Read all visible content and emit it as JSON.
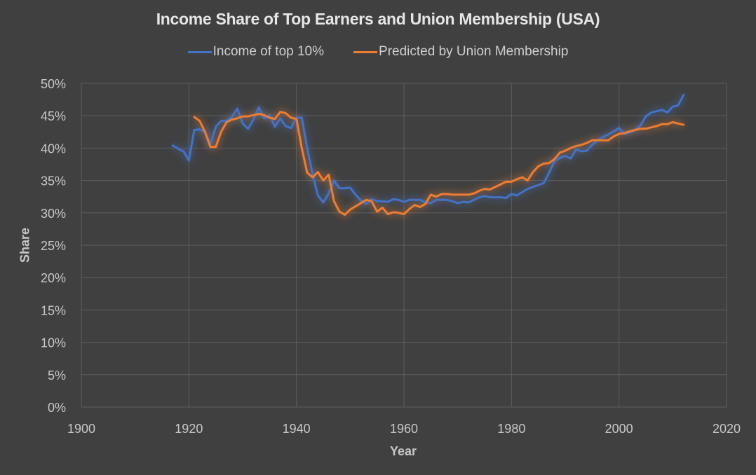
{
  "chart_data": {
    "type": "line",
    "title": "Income Share of Top Earners and Union Membership (USA)",
    "xlabel": "Year",
    "ylabel": "Share",
    "xlim": [
      1900,
      2020
    ],
    "ylim": [
      0,
      50
    ],
    "x_ticks": [
      "1900",
      "1920",
      "1940",
      "1960",
      "1980",
      "2000",
      "2020"
    ],
    "y_ticks": [
      "0%",
      "5%",
      "10%",
      "15%",
      "20%",
      "25%",
      "30%",
      "35%",
      "40%",
      "45%",
      "50%"
    ],
    "grid": true,
    "legend_position": "top",
    "series": [
      {
        "name": "Income of top 10%",
        "color": "#4472c4",
        "x": [
          1917,
          1918,
          1919,
          1920,
          1921,
          1922,
          1923,
          1924,
          1925,
          1926,
          1927,
          1928,
          1929,
          1930,
          1931,
          1932,
          1933,
          1934,
          1935,
          1936,
          1937,
          1938,
          1939,
          1940,
          1941,
          1942,
          1943,
          1944,
          1945,
          1946,
          1947,
          1948,
          1949,
          1950,
          1951,
          1952,
          1953,
          1954,
          1955,
          1956,
          1957,
          1958,
          1959,
          1960,
          1961,
          1962,
          1963,
          1964,
          1965,
          1966,
          1967,
          1968,
          1969,
          1970,
          1971,
          1972,
          1973,
          1974,
          1975,
          1976,
          1977,
          1978,
          1979,
          1980,
          1981,
          1982,
          1983,
          1984,
          1985,
          1986,
          1987,
          1988,
          1989,
          1990,
          1991,
          1992,
          1993,
          1994,
          1995,
          1996,
          1997,
          1998,
          1999,
          2000,
          2001,
          2002,
          2003,
          2004,
          2005,
          2006,
          2007,
          2008,
          2009,
          2010,
          2011,
          2012
        ],
        "values": [
          40.4,
          39.9,
          39.5,
          38.1,
          42.8,
          42.9,
          42.5,
          40.6,
          43.3,
          44.2,
          44.2,
          44.8,
          46.1,
          43.8,
          43.0,
          44.4,
          46.3,
          44.6,
          45.1,
          43.3,
          44.6,
          43.4,
          43.1,
          44.7,
          44.7,
          40.0,
          36.0,
          32.7,
          31.6,
          33.0,
          35.0,
          33.8,
          33.8,
          33.9,
          32.8,
          31.9,
          31.4,
          32.1,
          31.8,
          31.8,
          31.7,
          32.1,
          32.0,
          31.7,
          32.0,
          32.0,
          32.0,
          31.6,
          31.5,
          32.0,
          32.0,
          32.0,
          31.8,
          31.5,
          31.7,
          31.6,
          32.0,
          32.4,
          32.6,
          32.4,
          32.4,
          32.4,
          32.3,
          32.9,
          32.7,
          33.2,
          33.7,
          34.0,
          34.3,
          34.6,
          36.2,
          38.0,
          38.5,
          38.8,
          38.4,
          39.8,
          39.5,
          39.6,
          40.5,
          41.2,
          41.7,
          42.1,
          42.6,
          43.1,
          42.2,
          42.4,
          42.8,
          43.5,
          44.9,
          45.5,
          45.7,
          45.9,
          45.5,
          46.4,
          46.6,
          48.2
        ]
      },
      {
        "name": "Predicted by Union Membership",
        "color": "#ed7d31",
        "x": [
          1921,
          1922,
          1923,
          1924,
          1925,
          1926,
          1927,
          1928,
          1929,
          1930,
          1931,
          1932,
          1933,
          1934,
          1935,
          1936,
          1937,
          1938,
          1939,
          1940,
          1941,
          1942,
          1943,
          1944,
          1945,
          1946,
          1947,
          1948,
          1949,
          1950,
          1951,
          1952,
          1953,
          1954,
          1955,
          1956,
          1957,
          1958,
          1959,
          1960,
          1961,
          1962,
          1963,
          1964,
          1965,
          1966,
          1967,
          1968,
          1969,
          1970,
          1971,
          1972,
          1973,
          1974,
          1975,
          1976,
          1977,
          1978,
          1979,
          1980,
          1981,
          1982,
          1983,
          1984,
          1985,
          1986,
          1987,
          1988,
          1989,
          1990,
          1991,
          1992,
          1993,
          1994,
          1995,
          1996,
          1997,
          1998,
          1999,
          2000,
          2001,
          2002,
          2003,
          2004,
          2005,
          2006,
          2007,
          2008,
          2009,
          2010,
          2011,
          2012
        ],
        "values": [
          44.8,
          44.2,
          42.5,
          40.2,
          40.2,
          42.5,
          44.0,
          44.4,
          44.6,
          44.9,
          44.9,
          45.1,
          45.3,
          45.1,
          44.7,
          44.5,
          45.6,
          45.4,
          44.7,
          44.5,
          40.0,
          36.2,
          35.5,
          36.3,
          35.0,
          35.9,
          31.8,
          30.2,
          29.7,
          30.5,
          31.0,
          31.5,
          32.0,
          31.8,
          30.2,
          30.8,
          29.8,
          30.1,
          30.0,
          29.8,
          30.6,
          31.2,
          30.9,
          31.4,
          32.8,
          32.5,
          32.9,
          32.9,
          32.8,
          32.8,
          32.8,
          32.8,
          33.0,
          33.4,
          33.7,
          33.6,
          34.0,
          34.4,
          34.8,
          34.8,
          35.2,
          35.5,
          35.0,
          36.3,
          37.2,
          37.6,
          37.7,
          38.3,
          39.3,
          39.6,
          40.0,
          40.3,
          40.5,
          40.8,
          41.2,
          41.2,
          41.2,
          41.2,
          41.8,
          42.2,
          42.3,
          42.6,
          42.8,
          43.0,
          43.0,
          43.2,
          43.4,
          43.7,
          43.7,
          44.0,
          43.8,
          43.6
        ]
      }
    ]
  },
  "legend": {
    "items": [
      {
        "label": "Income of top 10%",
        "color": "#4472c4"
      },
      {
        "label": "Predicted by Union Membership",
        "color": "#ed7d31"
      }
    ]
  },
  "colors": {
    "background": "#404040",
    "gridline": "#5e5e5e",
    "text": "#c8c8c8"
  }
}
